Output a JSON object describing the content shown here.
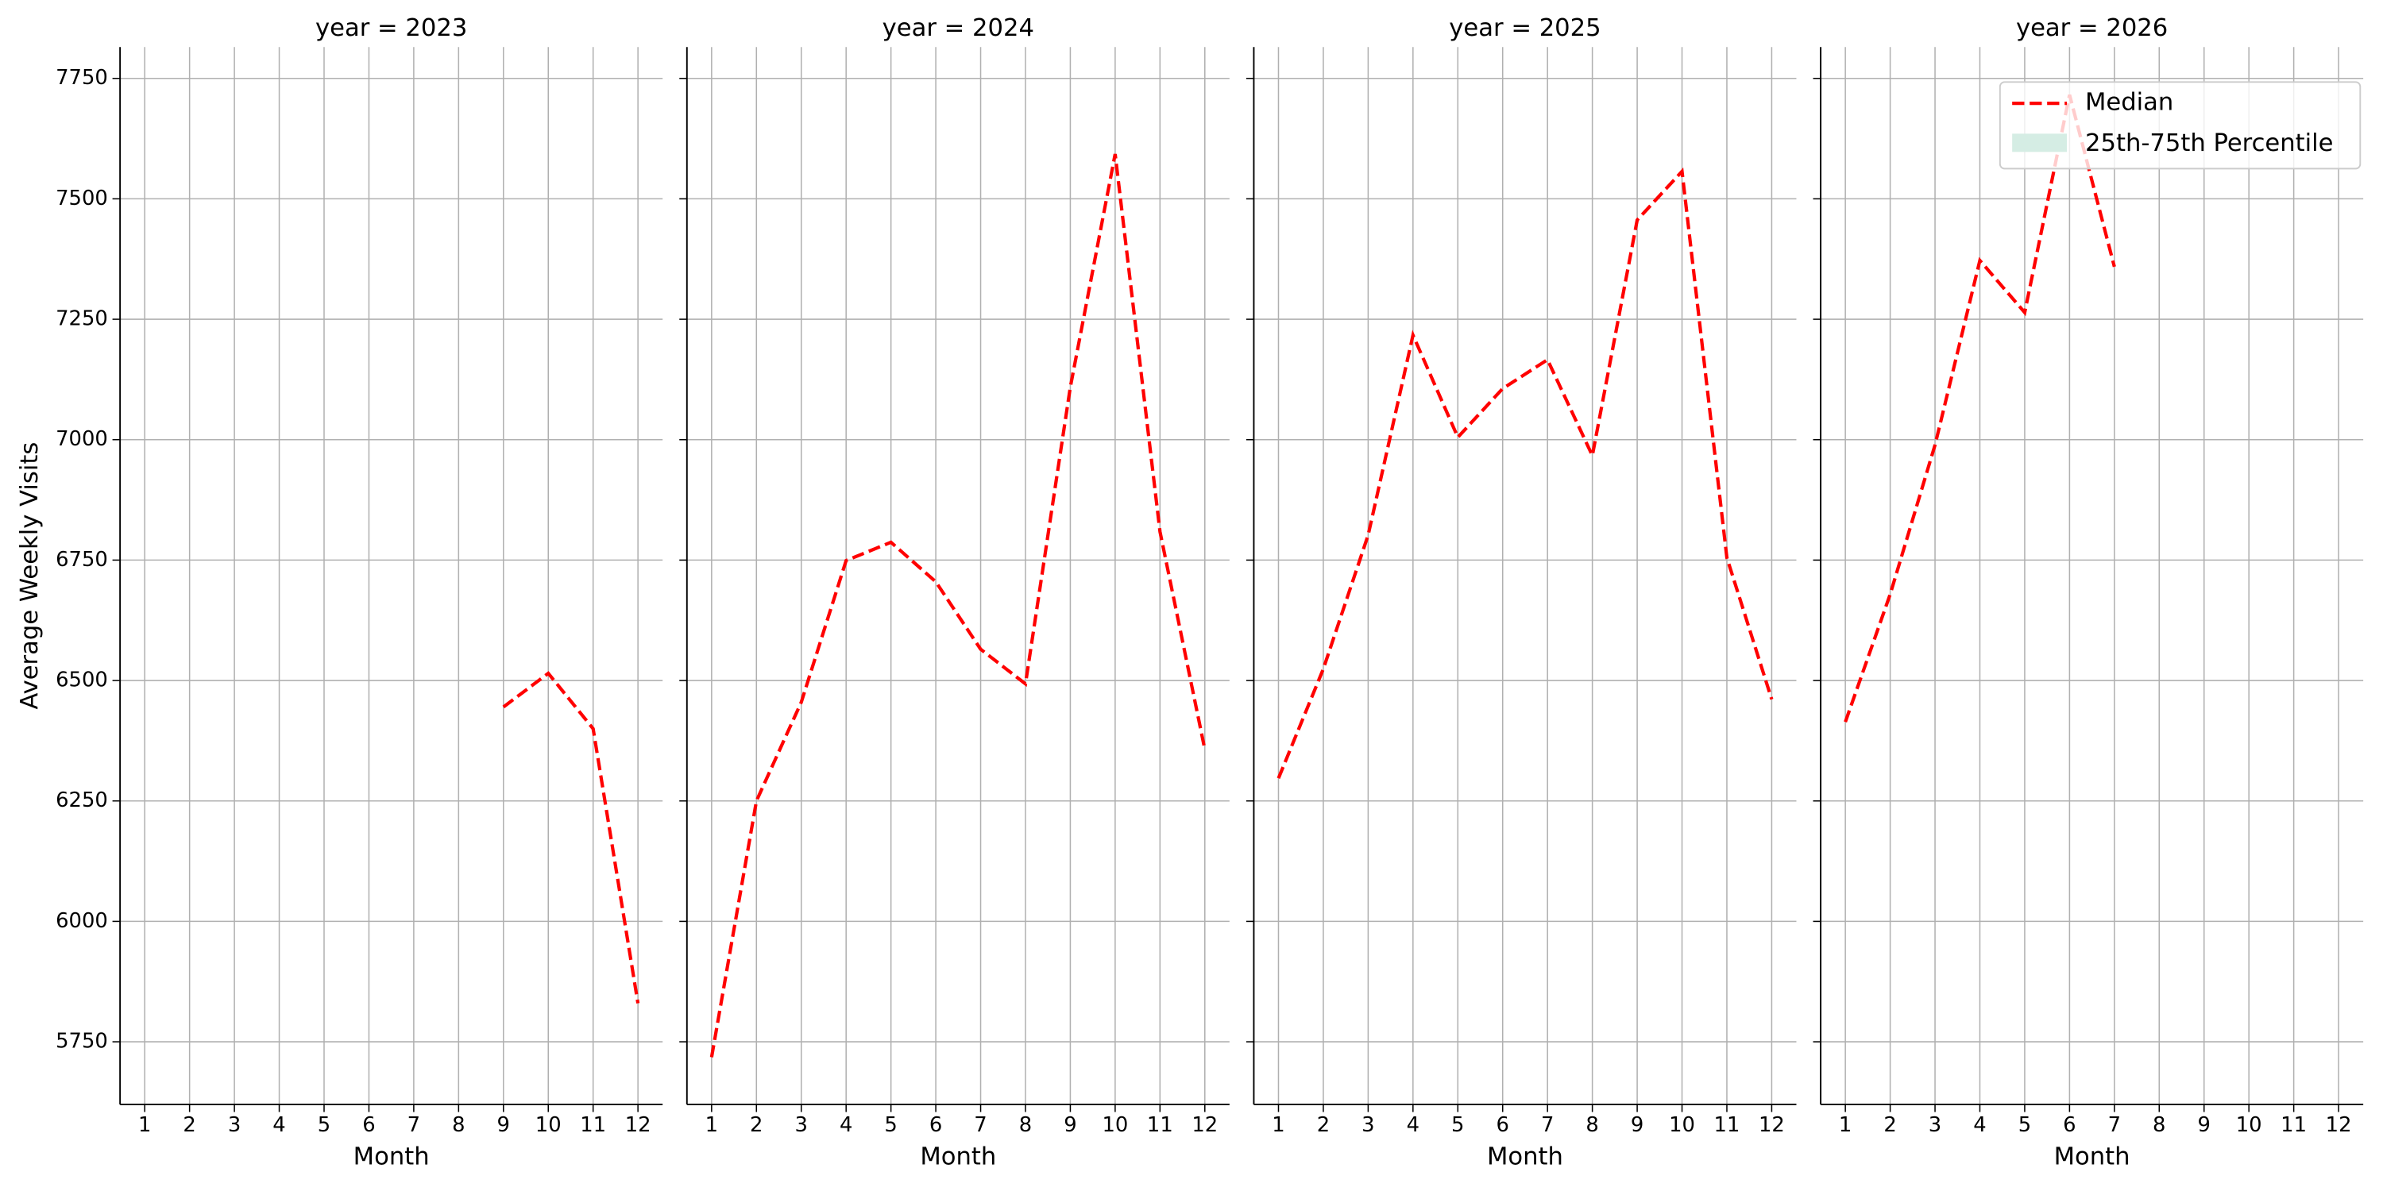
{
  "chart_data": [
    {
      "type": "line",
      "title": "year = 2023",
      "x_label": "Month",
      "y_label": "Average Weekly Visits",
      "x": [
        1,
        2,
        3,
        4,
        5,
        6,
        7,
        8,
        9,
        10,
        11,
        12
      ],
      "xlim": [
        0.45,
        12.55
      ],
      "xticks": [
        1,
        2,
        3,
        4,
        5,
        6,
        7,
        8,
        9,
        10,
        11,
        12
      ],
      "ylim": [
        5620,
        7815
      ],
      "yticks": [
        5750,
        6000,
        6250,
        6500,
        6750,
        7000,
        7250,
        7500,
        7750
      ],
      "grid": true,
      "series": [
        {
          "color": "#ff0000",
          "line_style": "dashed",
          "values": [
            null,
            null,
            null,
            null,
            null,
            null,
            null,
            null,
            6445,
            6515,
            6400,
            5830
          ]
        }
      ]
    },
    {
      "type": "line",
      "title": "year = 2024",
      "x_label": "Month",
      "x": [
        1,
        2,
        3,
        4,
        5,
        6,
        7,
        8,
        9,
        10,
        11,
        12
      ],
      "xlim": [
        0.45,
        12.55
      ],
      "xticks": [
        1,
        2,
        3,
        4,
        5,
        6,
        7,
        8,
        9,
        10,
        11,
        12
      ],
      "ylim": [
        5620,
        7815
      ],
      "yticks": [
        5750,
        6000,
        6250,
        6500,
        6750,
        7000,
        7250,
        7500,
        7750
      ],
      "grid": true,
      "series": [
        {
          "color": "#ff0000",
          "line_style": "dashed",
          "values": [
            5718,
            6250,
            6455,
            6749,
            6787,
            6705,
            6565,
            6493,
            7109,
            7593,
            6809,
            6357
          ]
        }
      ]
    },
    {
      "type": "line",
      "title": "year = 2025",
      "x_label": "Month",
      "x": [
        1,
        2,
        3,
        4,
        5,
        6,
        7,
        8,
        9,
        10,
        11,
        12
      ],
      "xlim": [
        0.45,
        12.55
      ],
      "xticks": [
        1,
        2,
        3,
        4,
        5,
        6,
        7,
        8,
        9,
        10,
        11,
        12
      ],
      "ylim": [
        5620,
        7815
      ],
      "yticks": [
        5750,
        6000,
        6250,
        6500,
        6750,
        7000,
        7250,
        7500,
        7750
      ],
      "grid": true,
      "series": [
        {
          "color": "#ff0000",
          "line_style": "dashed",
          "values": [
            6297,
            6524,
            6802,
            7217,
            7005,
            7106,
            7166,
            6967,
            7456,
            7557,
            6755,
            6461
          ]
        }
      ]
    },
    {
      "type": "line",
      "title": "year = 2026",
      "x_label": "Month",
      "x": [
        1,
        2,
        3,
        4,
        5,
        6,
        7,
        8,
        9,
        10,
        11,
        12
      ],
      "xlim": [
        0.45,
        12.55
      ],
      "xticks": [
        1,
        2,
        3,
        4,
        5,
        6,
        7,
        8,
        9,
        10,
        11,
        12
      ],
      "ylim": [
        5620,
        7815
      ],
      "yticks": [
        5750,
        6000,
        6250,
        6500,
        6750,
        7000,
        7250,
        7500,
        7750
      ],
      "grid": true,
      "series": [
        {
          "name": "Median",
          "color": "#ff0000",
          "line_style": "dashed",
          "values": [
            6414,
            6679,
            6989,
            7372,
            7264,
            7716,
            7359,
            null,
            null,
            null,
            null,
            null
          ]
        }
      ],
      "band": {
        "name": "25th-75th Percentile",
        "color": "#d5ede4"
      },
      "legend": "upper right"
    }
  ]
}
